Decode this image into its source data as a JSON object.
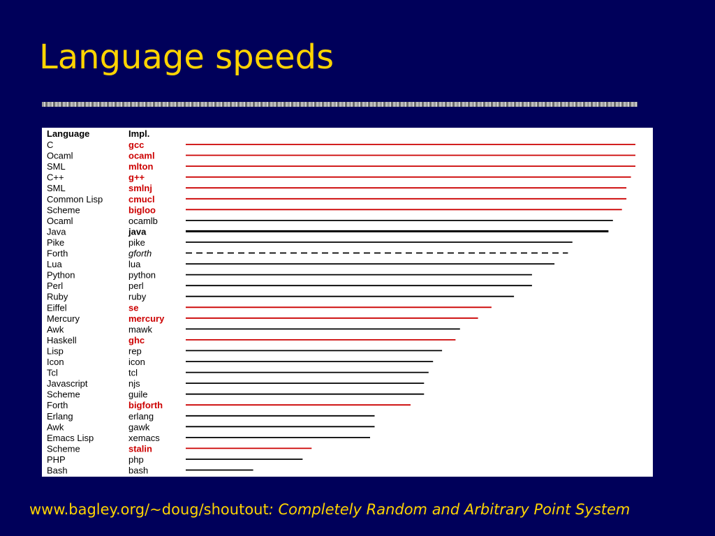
{
  "slide": {
    "title": "Language speeds",
    "footer": {
      "url": "www.bagley.org/~doug/shoutout",
      "subtitle": ": Completely Random and Arbitrary Point System"
    }
  },
  "colors": {
    "background": "#00005a",
    "title": "#ffd400",
    "native_highlight": "#cc0000",
    "other": "#000000"
  },
  "chart_data": {
    "type": "bar",
    "orientation": "horizontal",
    "columns": [
      "Language",
      "Impl."
    ],
    "value_range": [
      0,
      100
    ],
    "rows": [
      {
        "language": "C",
        "impl": "gcc",
        "value": 100,
        "style": "red"
      },
      {
        "language": "Ocaml",
        "impl": "ocaml",
        "value": 100,
        "style": "red"
      },
      {
        "language": "SML",
        "impl": "mlton",
        "value": 100,
        "style": "red"
      },
      {
        "language": "C++",
        "impl": "g++",
        "value": 99,
        "style": "red"
      },
      {
        "language": "SML",
        "impl": "smlnj",
        "value": 98,
        "style": "red"
      },
      {
        "language": "Common Lisp",
        "impl": "cmucl",
        "value": 98,
        "style": "red"
      },
      {
        "language": "Scheme",
        "impl": "bigloo",
        "value": 97,
        "style": "red"
      },
      {
        "language": "Ocaml",
        "impl": "ocamlb",
        "value": 95,
        "style": "plain"
      },
      {
        "language": "Java",
        "impl": "java",
        "value": 94,
        "style": "bold"
      },
      {
        "language": "Pike",
        "impl": "pike",
        "value": 86,
        "style": "plain"
      },
      {
        "language": "Forth",
        "impl": "gforth",
        "value": 85,
        "style": "dashed"
      },
      {
        "language": "Lua",
        "impl": "lua",
        "value": 82,
        "style": "plain"
      },
      {
        "language": "Python",
        "impl": "python",
        "value": 77,
        "style": "plain"
      },
      {
        "language": "Perl",
        "impl": "perl",
        "value": 77,
        "style": "plain"
      },
      {
        "language": "Ruby",
        "impl": "ruby",
        "value": 73,
        "style": "plain"
      },
      {
        "language": "Eiffel",
        "impl": "se",
        "value": 68,
        "style": "red"
      },
      {
        "language": "Mercury",
        "impl": "mercury",
        "value": 65,
        "style": "red"
      },
      {
        "language": "Awk",
        "impl": "mawk",
        "value": 61,
        "style": "plain"
      },
      {
        "language": "Haskell",
        "impl": "ghc",
        "value": 60,
        "style": "red"
      },
      {
        "language": "Lisp",
        "impl": "rep",
        "value": 57,
        "style": "plain"
      },
      {
        "language": "Icon",
        "impl": "icon",
        "value": 55,
        "style": "plain"
      },
      {
        "language": "Tcl",
        "impl": "tcl",
        "value": 54,
        "style": "plain"
      },
      {
        "language": "Javascript",
        "impl": "njs",
        "value": 53,
        "style": "plain"
      },
      {
        "language": "Scheme",
        "impl": "guile",
        "value": 53,
        "style": "plain"
      },
      {
        "language": "Forth",
        "impl": "bigforth",
        "value": 50,
        "style": "red"
      },
      {
        "language": "Erlang",
        "impl": "erlang",
        "value": 42,
        "style": "plain"
      },
      {
        "language": "Awk",
        "impl": "gawk",
        "value": 42,
        "style": "plain"
      },
      {
        "language": "Emacs Lisp",
        "impl": "xemacs",
        "value": 41,
        "style": "plain"
      },
      {
        "language": "Scheme",
        "impl": "stalin",
        "value": 28,
        "style": "red"
      },
      {
        "language": "PHP",
        "impl": "php",
        "value": 26,
        "style": "plain"
      },
      {
        "language": "Bash",
        "impl": "bash",
        "value": 15,
        "style": "plain"
      }
    ]
  }
}
